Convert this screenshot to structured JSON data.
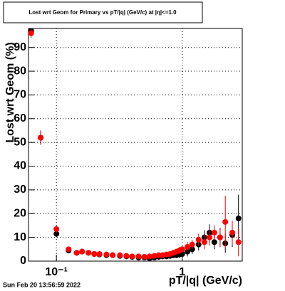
{
  "chart_data": {
    "type": "scatter",
    "title": "Lost wrt Geom for Primary vs pT/|q| (GeV/c) at |η|<=1.0",
    "x_label": "pT/|q| (GeV/c)",
    "y_label": "Lost wrt Geom (%)",
    "timestamp": "Sun Feb 20 13:56:59 2022",
    "log_x": true,
    "grid": true,
    "xlim": [
      0.06,
      3
    ],
    "ylim": [
      0,
      98
    ],
    "xticks": [
      {
        "value": 0.1,
        "label": "10⁻¹"
      },
      1
    ],
    "yticks": [
      0,
      10,
      20,
      30,
      40,
      50,
      60,
      70,
      80,
      90
    ],
    "x": [
      0.063,
      0.075,
      0.1,
      0.125,
      0.145,
      0.16,
      0.18,
      0.2,
      0.22,
      0.25,
      0.28,
      0.32,
      0.36,
      0.4,
      0.45,
      0.5,
      0.55,
      0.6,
      0.65,
      0.7,
      0.75,
      0.8,
      0.85,
      0.9,
      0.95,
      1.0,
      1.1,
      1.2,
      1.35,
      1.5,
      1.65,
      1.8,
      2.0,
      2.2,
      2.5,
      2.8
    ],
    "series": [
      {
        "color": "#000000",
        "values": [
          97,
          52,
          11.5,
          4.5,
          3.5,
          4,
          3.5,
          3,
          2.8,
          2.5,
          2.5,
          2.2,
          2,
          1.8,
          1.5,
          1.5,
          1.2,
          1.5,
          1.8,
          2,
          2,
          2.2,
          2.5,
          2.5,
          2.8,
          3,
          4,
          5,
          7,
          10,
          12,
          8,
          10,
          7.5,
          11,
          18
        ],
        "errors": [
          2,
          3,
          1.5,
          1,
          1,
          1,
          1,
          1,
          1,
          1,
          1,
          1,
          1,
          1,
          1,
          1,
          1,
          1,
          1,
          1,
          1,
          1,
          1.2,
          1.2,
          1.5,
          1.5,
          2,
          2,
          2.5,
          3,
          3.5,
          3,
          4,
          4,
          5,
          10
        ]
      },
      {
        "color": "#ff0000",
        "values": [
          96,
          52,
          13.5,
          5,
          3.5,
          4,
          3.5,
          3,
          3,
          2.8,
          2.5,
          2.5,
          2.2,
          2,
          2,
          1.8,
          2,
          2.2,
          2.5,
          2.5,
          2.8,
          3,
          3.5,
          4,
          4.5,
          5,
          6,
          7,
          9,
          8,
          10,
          12,
          10,
          16.5,
          12,
          8
        ],
        "errors": [
          2,
          3,
          1.5,
          1,
          1,
          1,
          1,
          1,
          1,
          1,
          1,
          1,
          1,
          1,
          1,
          1,
          1,
          1,
          1,
          1,
          1,
          1,
          1.2,
          1.2,
          1.5,
          1.5,
          2,
          2,
          2.5,
          3,
          3.5,
          3,
          4,
          11,
          5,
          6
        ]
      }
    ]
  }
}
